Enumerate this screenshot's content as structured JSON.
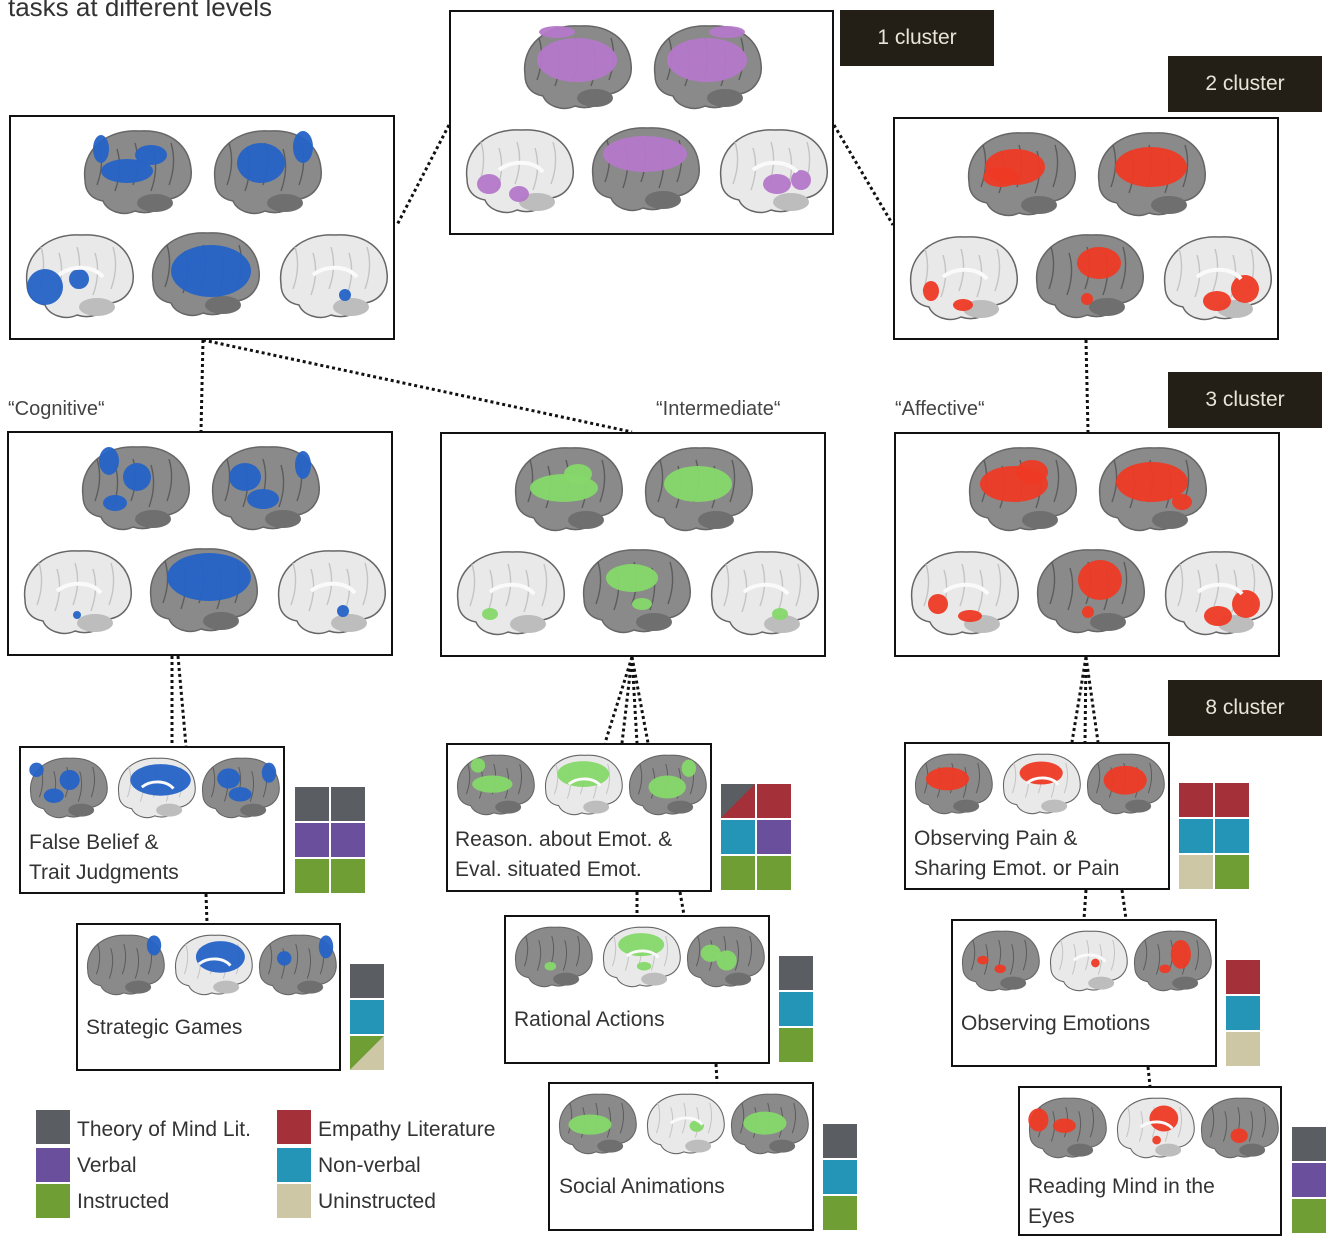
{
  "title": "tasks at different levels",
  "colors": {
    "tom": "#5a5d62",
    "empathy": "#a4313a",
    "verbal": "#6a4f9c",
    "nonverbal": "#2495b7",
    "instructed": "#6f9e34",
    "uninstructed": "#cdc7a5",
    "blue_activation": "#2563c7",
    "violet_activation": "#b478c9",
    "red_activation": "#ee3a24",
    "green_activation": "#86d86a"
  },
  "badges": {
    "c1": "1 cluster",
    "c2": "2 cluster",
    "c3": "3 cluster",
    "c8": "8 cluster"
  },
  "groups": {
    "cognitive": "“Cognitive“",
    "intermediate": "“Intermediate“",
    "affective": "“Affective“"
  },
  "panels": {
    "false_belief": [
      "False Belief &",
      "Trait Judgments"
    ],
    "strategic": [
      "Strategic Games"
    ],
    "reason": [
      "Reason. about Emot. &",
      "Eval. situated Emot."
    ],
    "rational": [
      "Rational Actions"
    ],
    "social": [
      "Social Animations"
    ],
    "pain": [
      "Observing Pain &",
      "Sharing Emot. or Pain"
    ],
    "emotions": [
      "Observing Emotions"
    ],
    "reading": [
      "Reading Mind in the",
      "Eyes"
    ]
  },
  "legend": [
    {
      "key": "tom",
      "label": "Theory of Mind Lit."
    },
    {
      "key": "verbal",
      "label": "Verbal"
    },
    {
      "key": "instructed",
      "label": "Instructed"
    },
    {
      "key": "empathy",
      "label": "Empathy Literature"
    },
    {
      "key": "nonverbal",
      "label": "Non-verbal"
    },
    {
      "key": "uninstructed",
      "label": "Uninstructed"
    }
  ]
}
